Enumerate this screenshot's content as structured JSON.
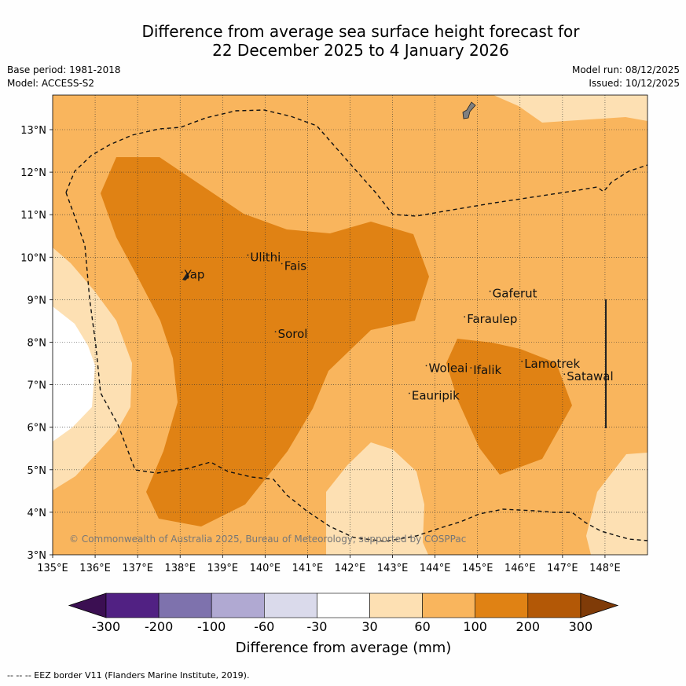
{
  "title": {
    "line1": "Difference from average sea surface height forecast for",
    "line2": "22 December 2025 to 4 January 2026"
  },
  "meta": {
    "base_period": "Base period: 1981-2018",
    "model": "Model: ACCESS-S2",
    "model_run": "Model run: 08/12/2025",
    "issued": "Issued: 10/12/2025"
  },
  "map": {
    "lon_range": [
      135,
      149
    ],
    "lat_range": [
      3,
      13.8
    ],
    "lon_ticks": [
      "135°E",
      "136°E",
      "137°E",
      "138°E",
      "139°E",
      "140°E",
      "141°E",
      "142°E",
      "143°E",
      "144°E",
      "145°E",
      "146°E",
      "147°E",
      "148°E"
    ],
    "lat_ticks": [
      "3°N",
      "4°N",
      "5°N",
      "6°N",
      "7°N",
      "8°N",
      "9°N",
      "10°N",
      "11°N",
      "12°N",
      "13°N"
    ],
    "places": [
      {
        "name": "Yap",
        "lon": 138.1,
        "lat": 9.5
      },
      {
        "name": "Ulithi",
        "lon": 139.65,
        "lat": 9.9
      },
      {
        "name": "Fais",
        "lon": 140.45,
        "lat": 9.7
      },
      {
        "name": "Gaferut",
        "lon": 145.35,
        "lat": 9.05
      },
      {
        "name": "Faraulep",
        "lon": 144.75,
        "lat": 8.45
      },
      {
        "name": "Sorol",
        "lon": 140.3,
        "lat": 8.1
      },
      {
        "name": "Woleai",
        "lon": 143.85,
        "lat": 7.3
      },
      {
        "name": "Ifalik",
        "lon": 144.9,
        "lat": 7.25
      },
      {
        "name": "Lamotrek",
        "lon": 146.1,
        "lat": 7.4
      },
      {
        "name": "Satawal",
        "lon": 147.1,
        "lat": 7.1
      },
      {
        "name": "Eauripik",
        "lon": 143.45,
        "lat": 6.65
      }
    ],
    "credit": "© Commonwealth of Australia 2025, Bureau of Meteorology, supported by COSPPac"
  },
  "colorbar": {
    "ticks": [
      "-300",
      "-200",
      "-100",
      "-60",
      "-30",
      "30",
      "60",
      "100",
      "200",
      "300"
    ],
    "colors": [
      "#3b0f52",
      "#512183",
      "#7e72ad",
      "#b0a9d2",
      "#dadaeb",
      "#ffffff",
      "#fde0b3",
      "#f9b55d",
      "#e08214",
      "#b35806",
      "#7f3b08"
    ],
    "label": "Difference from average (mm)"
  },
  "footnote": "-- -- -- EEZ border V11 (Flanders Marine Institute, 2019)."
}
